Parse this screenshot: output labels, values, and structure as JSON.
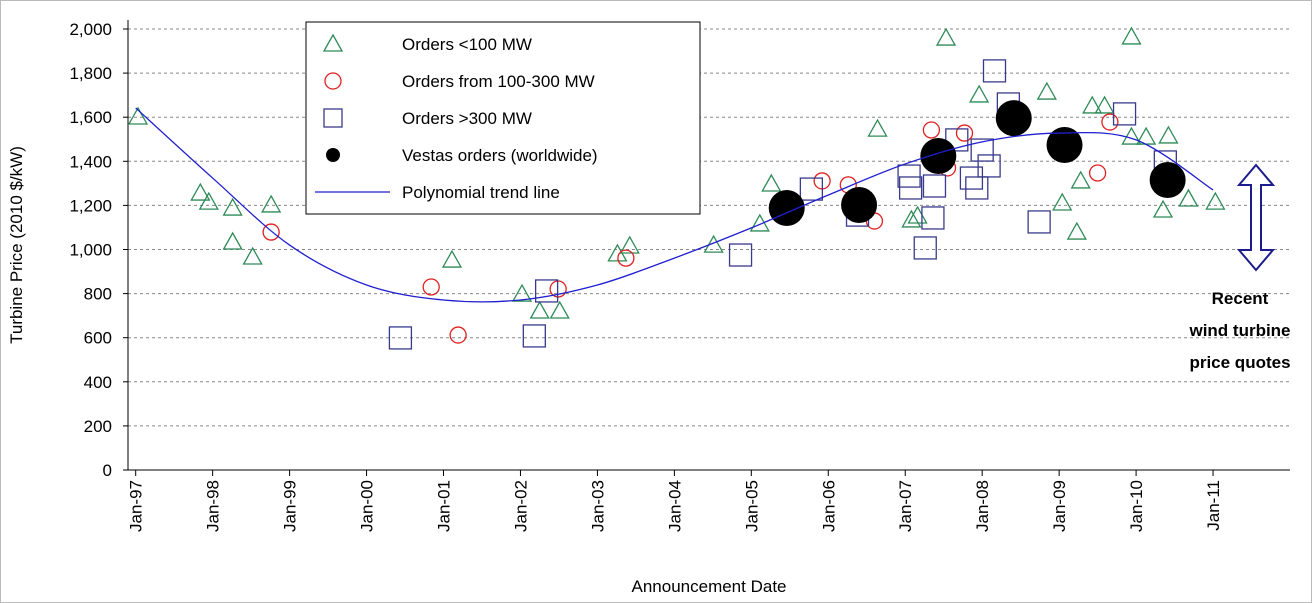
{
  "chart_data": {
    "type": "scatter",
    "xlabel": "Announcement Date",
    "ylabel": "Turbine Price (2010 $/kW)",
    "xlim": [
      1996.9,
      2012.0
    ],
    "ylim": [
      0,
      2000
    ],
    "grid": true,
    "legend": "top-left",
    "xticks": [
      {
        "value": 1997,
        "label": "Jan-97"
      },
      {
        "value": 1998,
        "label": "Jan-98"
      },
      {
        "value": 1999,
        "label": "Jan-99"
      },
      {
        "value": 2000,
        "label": "Jan-00"
      },
      {
        "value": 2001,
        "label": "Jan-01"
      },
      {
        "value": 2002,
        "label": "Jan-02"
      },
      {
        "value": 2003,
        "label": "Jan-03"
      },
      {
        "value": 2004,
        "label": "Jan-04"
      },
      {
        "value": 2005,
        "label": "Jan-05"
      },
      {
        "value": 2006,
        "label": "Jan-06"
      },
      {
        "value": 2007,
        "label": "Jan-07"
      },
      {
        "value": 2008,
        "label": "Jan-08"
      },
      {
        "value": 2009,
        "label": "Jan-09"
      },
      {
        "value": 2010,
        "label": "Jan-10"
      },
      {
        "value": 2011,
        "label": "Jan-11"
      }
    ],
    "yticks": [
      0,
      200,
      400,
      600,
      800,
      {
        "value": 1000,
        "label": "1,000"
      },
      {
        "value": 1200,
        "label": "1,200"
      },
      {
        "value": 1400,
        "label": "1,400"
      },
      {
        "value": 1600,
        "label": "1,600"
      },
      {
        "value": 1800,
        "label": "1,800"
      },
      {
        "value": 2000,
        "label": "2,000"
      }
    ],
    "annotation": {
      "lines": [
        "Recent",
        "wind turbine",
        "price quotes"
      ],
      "color": "#1c1c8c"
    },
    "series": [
      {
        "name": "Orders <100 MW",
        "marker": "triangle",
        "color": "#2e8b57",
        "x": [
          1997.03,
          1997.84,
          1997.95,
          1998.26,
          1998.26,
          1998.52,
          1998.76,
          2001.11,
          2002.02,
          2002.25,
          2002.51,
          2003.26,
          2003.42,
          2004.51,
          2005.11,
          2005.26,
          2006.64,
          2007.08,
          2007.16,
          2007.53,
          2007.96,
          2008.84,
          2009.04,
          2009.23,
          2009.28,
          2009.43,
          2009.59,
          2009.94,
          2009.94,
          2010.13,
          2010.35,
          2010.42,
          2010.68,
          2011.03
        ],
        "values": [
          1601,
          1256,
          1215,
          1188,
          1034,
          966,
          1202,
          952,
          798,
          721,
          721,
          980,
          1016,
          1020,
          1116,
          1297,
          1546,
          1134,
          1152,
          1959,
          1701,
          1714,
          1211,
          1079,
          1311,
          1651,
          1651,
          1964,
          1510,
          1510,
          1179,
          1515,
          1229,
          1215
        ]
      },
      {
        "name": "Orders from 100-300 MW",
        "marker": "circle",
        "color": "#e02020",
        "x": [
          1998.76,
          2000.84,
          2001.19,
          2002.49,
          2003.37,
          2005.92,
          2006.26,
          2006.6,
          2007.34,
          2007.55,
          2007.77,
          2009.5,
          2009.66
        ],
        "values": [
          1079,
          830,
          612,
          821,
          961,
          1311,
          1293,
          1129,
          1542,
          1370,
          1528,
          1347,
          1578
        ]
      },
      {
        "name": "Orders >300 MW",
        "marker": "square",
        "color": "#3a3a8c",
        "x": [
          2000.44,
          2002.18,
          2002.34,
          2004.86,
          2005.78,
          2006.38,
          2007.05,
          2007.07,
          2007.26,
          2007.36,
          2007.38,
          2007.67,
          2007.86,
          2007.93,
          2008.0,
          2008.09,
          2008.16,
          2008.34,
          2008.74,
          2009.85,
          2010.38
        ],
        "values": [
          599,
          608,
          812,
          975,
          1274,
          1156,
          1333,
          1279,
          1007,
          1143,
          1288,
          1497,
          1324,
          1279,
          1451,
          1379,
          1810,
          1660,
          1125,
          1615,
          1397
        ]
      },
      {
        "name": "Vestas orders (worldwide)",
        "marker": "dot",
        "color": "#000000",
        "x": [
          2005.46,
          2006.4,
          2007.43,
          2008.41,
          2009.07,
          2010.41
        ],
        "values": [
          1188,
          1202,
          1424,
          1596,
          1474,
          1315
        ]
      },
      {
        "name": "Polynomial trend line",
        "marker": "line",
        "color": "#1f1fd0",
        "x": [
          1997,
          1998,
          1999,
          2000,
          2001,
          2002,
          2003,
          2004,
          2005,
          2006,
          2007,
          2008,
          2009,
          2010,
          2011
        ],
        "values": [
          1642,
          1324,
          1020,
          839,
          771,
          771,
          839,
          961,
          1098,
          1247,
          1388,
          1488,
          1528,
          1497,
          1270
        ]
      }
    ]
  }
}
